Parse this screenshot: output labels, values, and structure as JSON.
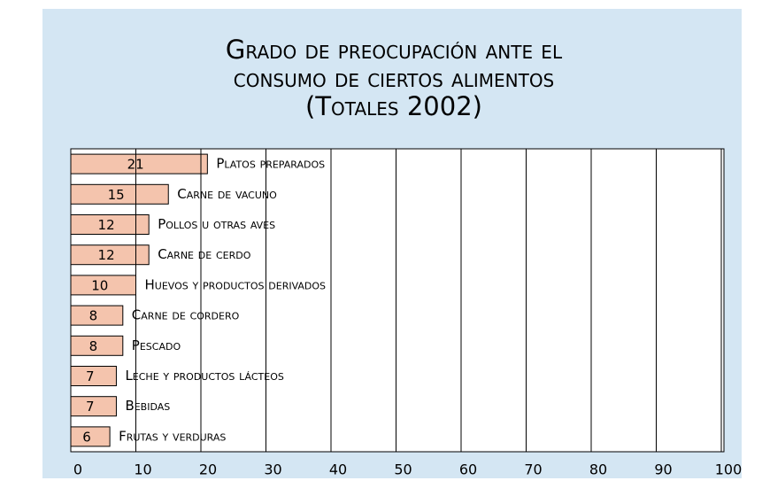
{
  "chart_data": {
    "type": "barh",
    "title": [
      "Grado de preocupación ante el",
      "consumo de ciertos alimentos",
      "(Totales 2002)"
    ],
    "categories": [
      "Platos preparados",
      "Carne de vacuno",
      "Pollos u otras aves",
      "Carne de cerdo",
      "Huevos y productos derivados",
      "Carne de cordero",
      "Pescado",
      "Leche y productos lácteos",
      "Bebidas",
      "Frutas y verduras"
    ],
    "values": [
      21,
      15,
      12,
      12,
      10,
      8,
      8,
      7,
      7,
      6
    ],
    "color": "#f4c4ad",
    "xlim": [
      0,
      100
    ],
    "xticks": [
      0,
      10,
      20,
      30,
      40,
      50,
      60,
      70,
      80,
      90,
      100
    ],
    "grid": true
  }
}
